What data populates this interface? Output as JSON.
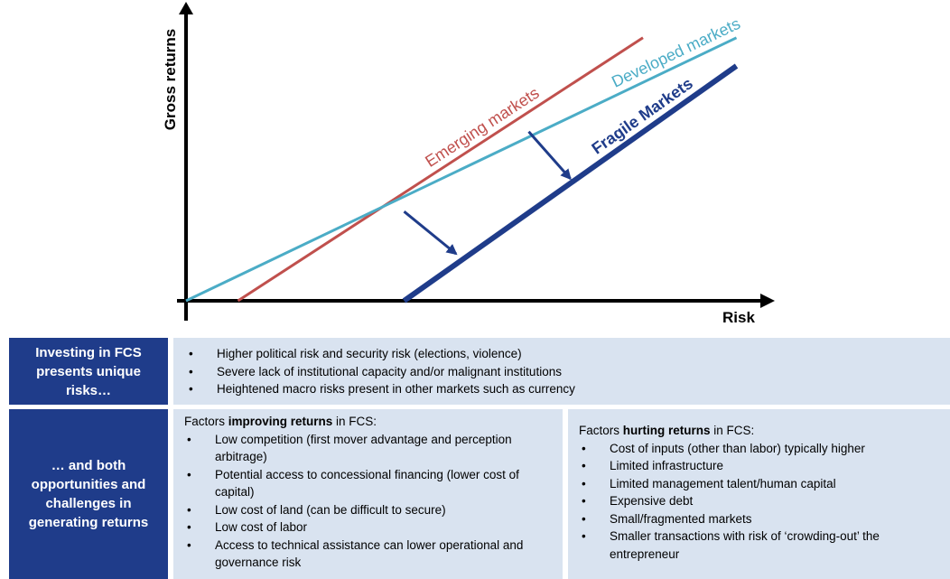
{
  "chart_data": {
    "type": "line",
    "ylabel": "Gross returns",
    "xlabel": "Risk",
    "series": [
      {
        "name": "Emerging markets",
        "color": "#c0504d",
        "x": [
          0.5,
          4.4
        ],
        "y": [
          0,
          2.8
        ]
      },
      {
        "name": "Developed markets",
        "color": "#4bacc6",
        "x": [
          0,
          5.3
        ],
        "y": [
          0,
          2.8
        ]
      },
      {
        "name": "Fragile Markets",
        "color": "#1f3c8a",
        "x": [
          2.1,
          5.3
        ],
        "y": [
          0,
          2.5
        ]
      }
    ],
    "arrows": [
      {
        "from": [
          3.3,
          1.8
        ],
        "to": [
          3.7,
          1.3
        ]
      },
      {
        "from": [
          2.1,
          0.95
        ],
        "to": [
          2.6,
          0.5
        ]
      }
    ]
  },
  "table": {
    "row1": {
      "header": "Investing in FCS presents unique risks…",
      "bullets": [
        "Higher political risk and security risk (elections, violence)",
        "Severe lack of institutional capacity and/or malignant institutions",
        "Heightened macro risks present in other markets such as currency"
      ]
    },
    "row2": {
      "header": "… and both opportunities and challenges in generating returns",
      "left": {
        "intro_pre": "Factors ",
        "intro_bold": "improving returns",
        "intro_post": " in FCS:",
        "bullets": [
          "Low competition (first mover advantage and perception arbitrage)",
          "Potential access to concessional financing (lower cost of capital)",
          "Low cost of land (can be difficult to secure)",
          "Low cost of labor",
          "Access to technical assistance can lower operational and governance risk"
        ]
      },
      "right": {
        "intro_pre": "Factors ",
        "intro_bold": "hurting returns",
        "intro_post": " in FCS:",
        "bullets": [
          "Cost of inputs (other than labor) typically higher",
          "Limited infrastructure",
          "Limited management talent/human capital",
          "Expensive debt",
          "Small/fragmented markets",
          "Smaller transactions with risk of ‘crowding-out’ the entrepreneur"
        ]
      }
    }
  }
}
